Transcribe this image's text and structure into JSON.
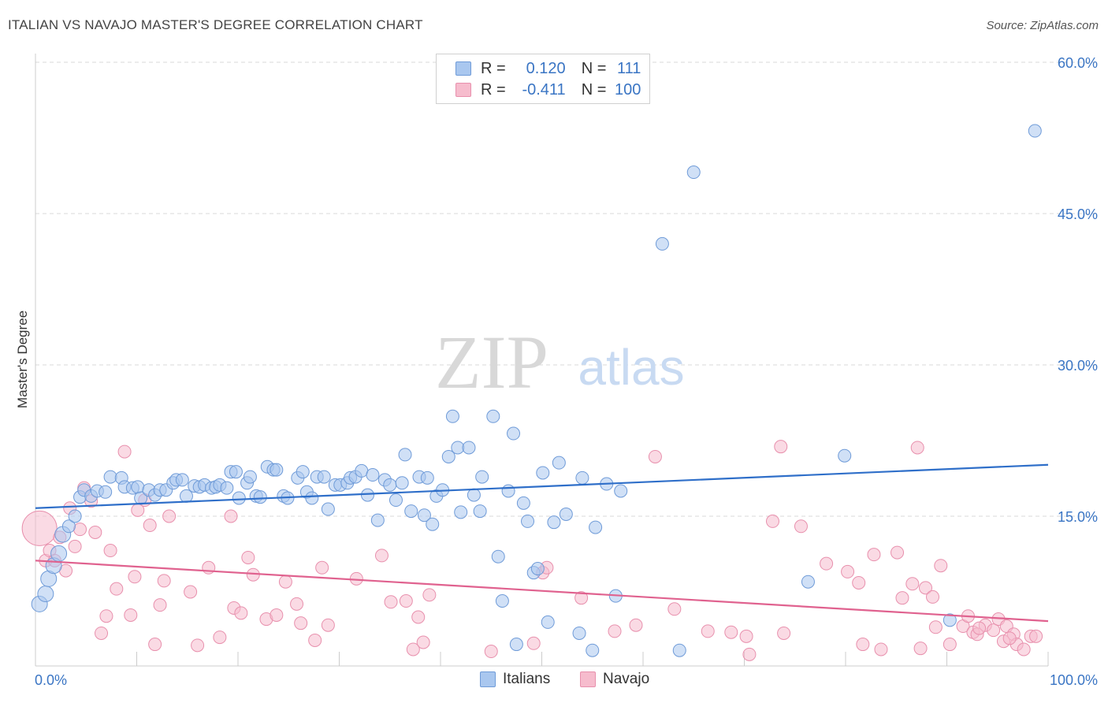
{
  "header": {
    "title": "ITALIAN VS NAVAJO MASTER'S DEGREE CORRELATION CHART",
    "source": "Source: ZipAtlas.com"
  },
  "watermark": {
    "zip": "ZIP",
    "atlas": "atlas"
  },
  "legend_top": {
    "rows": [
      {
        "r_label": "R = ",
        "r_value": "0.120",
        "n_label": "N = ",
        "n_value": "111"
      },
      {
        "r_label": "R = ",
        "r_value": "-0.411",
        "n_label": "N = ",
        "n_value": "100"
      }
    ]
  },
  "legend_bottom": {
    "italians": "Italians",
    "navajo": "Navajo"
  },
  "colors": {
    "italians_fill": "#a9c7ef",
    "italians_stroke": "#6f9bd8",
    "italians_line": "#2f6fc9",
    "navajo_fill": "#f6bccd",
    "navajo_stroke": "#e890ad",
    "navajo_line": "#e0628f",
    "tick_label": "#3a75c4",
    "grid": "#d9d9d9"
  },
  "chart_data": {
    "type": "scatter",
    "title": "ITALIAN VS NAVAJO MASTER'S DEGREE CORRELATION CHART",
    "xlabel": "",
    "ylabel": "Master's Degree",
    "xlim": [
      0,
      100
    ],
    "ylim": [
      0,
      62
    ],
    "x_tick_labels": [
      "0.0%",
      "100.0%"
    ],
    "y_ticks": [
      15,
      30,
      45,
      60
    ],
    "y_tick_labels": [
      "15.0%",
      "30.0%",
      "45.0%",
      "60.0%"
    ],
    "grid": "horizontal dashed",
    "series": [
      {
        "name": "Italians",
        "r": 0.12,
        "n": 111,
        "trend": {
          "x": [
            0,
            100
          ],
          "y": [
            15.8,
            20.1
          ]
        },
        "points": [
          [
            0.4,
            6.3
          ],
          [
            1.0,
            7.3
          ],
          [
            1.3,
            8.8
          ],
          [
            1.8,
            10.1
          ],
          [
            2.3,
            11.3
          ],
          [
            2.7,
            13.2
          ],
          [
            3.3,
            14.0
          ],
          [
            3.9,
            15.0
          ],
          [
            4.4,
            16.9
          ],
          [
            4.8,
            17.6
          ],
          [
            5.5,
            17.0
          ],
          [
            6.1,
            17.5
          ],
          [
            6.9,
            17.4
          ],
          [
            7.4,
            18.9
          ],
          [
            8.5,
            18.8
          ],
          [
            8.8,
            17.9
          ],
          [
            9.6,
            17.8
          ],
          [
            10.1,
            17.9
          ],
          [
            10.4,
            16.8
          ],
          [
            11.2,
            17.6
          ],
          [
            11.8,
            17.1
          ],
          [
            12.3,
            17.6
          ],
          [
            12.9,
            17.6
          ],
          [
            13.6,
            18.3
          ],
          [
            13.9,
            18.6
          ],
          [
            14.5,
            18.6
          ],
          [
            14.9,
            17.0
          ],
          [
            15.7,
            18.0
          ],
          [
            16.2,
            17.9
          ],
          [
            16.7,
            18.1
          ],
          [
            17.4,
            17.8
          ],
          [
            17.8,
            17.9
          ],
          [
            18.2,
            18.1
          ],
          [
            18.9,
            17.8
          ],
          [
            19.3,
            19.4
          ],
          [
            19.8,
            19.4
          ],
          [
            20.1,
            16.8
          ],
          [
            20.9,
            18.3
          ],
          [
            21.2,
            18.9
          ],
          [
            21.8,
            17.0
          ],
          [
            22.2,
            16.9
          ],
          [
            22.9,
            19.9
          ],
          [
            23.5,
            19.6
          ],
          [
            23.8,
            19.6
          ],
          [
            24.5,
            17.0
          ],
          [
            24.9,
            16.8
          ],
          [
            25.9,
            18.8
          ],
          [
            26.4,
            19.4
          ],
          [
            26.8,
            17.4
          ],
          [
            27.3,
            16.8
          ],
          [
            27.8,
            18.9
          ],
          [
            28.5,
            18.9
          ],
          [
            28.9,
            15.7
          ],
          [
            29.6,
            18.1
          ],
          [
            30.1,
            18.1
          ],
          [
            30.8,
            18.3
          ],
          [
            31.1,
            18.8
          ],
          [
            31.6,
            18.9
          ],
          [
            32.2,
            19.5
          ],
          [
            32.8,
            17.1
          ],
          [
            33.3,
            19.1
          ],
          [
            33.8,
            14.6
          ],
          [
            34.5,
            18.6
          ],
          [
            35.0,
            18.1
          ],
          [
            35.6,
            16.6
          ],
          [
            36.2,
            18.3
          ],
          [
            36.5,
            21.1
          ],
          [
            37.1,
            15.5
          ],
          [
            37.9,
            18.9
          ],
          [
            38.4,
            15.1
          ],
          [
            38.7,
            18.8
          ],
          [
            39.2,
            14.2
          ],
          [
            39.6,
            17.0
          ],
          [
            40.2,
            17.6
          ],
          [
            40.8,
            20.9
          ],
          [
            41.2,
            24.9
          ],
          [
            41.7,
            21.8
          ],
          [
            42.0,
            15.4
          ],
          [
            42.8,
            21.8
          ],
          [
            43.3,
            17.1
          ],
          [
            43.9,
            15.5
          ],
          [
            44.1,
            18.9
          ],
          [
            45.2,
            24.9
          ],
          [
            45.7,
            11.0
          ],
          [
            46.1,
            6.6
          ],
          [
            46.7,
            17.5
          ],
          [
            47.2,
            23.2
          ],
          [
            47.5,
            2.3
          ],
          [
            48.2,
            16.3
          ],
          [
            48.6,
            14.5
          ],
          [
            49.2,
            9.4
          ],
          [
            49.6,
            9.8
          ],
          [
            50.1,
            19.3
          ],
          [
            50.6,
            4.5
          ],
          [
            51.2,
            14.4
          ],
          [
            51.7,
            20.3
          ],
          [
            52.4,
            15.2
          ],
          [
            53.7,
            3.4
          ],
          [
            54.0,
            18.8
          ],
          [
            55.0,
            1.7
          ],
          [
            55.3,
            13.9
          ],
          [
            56.4,
            18.2
          ],
          [
            57.3,
            7.1
          ],
          [
            57.8,
            17.5
          ],
          [
            61.9,
            42.0
          ],
          [
            65.0,
            49.1
          ],
          [
            63.6,
            1.7
          ],
          [
            76.3,
            8.5
          ],
          [
            79.9,
            21.0
          ],
          [
            90.3,
            4.7
          ],
          [
            98.7,
            53.2
          ]
        ]
      },
      {
        "name": "Navajo",
        "r": -0.411,
        "n": 100,
        "trend": {
          "x": [
            0,
            100
          ],
          "y": [
            10.6,
            4.6
          ]
        },
        "points": [
          [
            0.4,
            13.8
          ],
          [
            1.0,
            10.6
          ],
          [
            1.4,
            11.6
          ],
          [
            1.9,
            10.6
          ],
          [
            2.4,
            12.9
          ],
          [
            3.0,
            9.6
          ],
          [
            3.4,
            15.8
          ],
          [
            3.9,
            12.0
          ],
          [
            4.4,
            13.7
          ],
          [
            4.8,
            17.8
          ],
          [
            5.5,
            16.5
          ],
          [
            5.9,
            13.4
          ],
          [
            6.5,
            3.4
          ],
          [
            7.0,
            5.1
          ],
          [
            7.4,
            11.6
          ],
          [
            8.0,
            7.8
          ],
          [
            8.8,
            21.4
          ],
          [
            9.4,
            5.2
          ],
          [
            9.8,
            9.0
          ],
          [
            10.1,
            15.6
          ],
          [
            10.8,
            16.6
          ],
          [
            11.3,
            14.1
          ],
          [
            11.8,
            2.3
          ],
          [
            12.3,
            6.2
          ],
          [
            12.7,
            8.6
          ],
          [
            13.2,
            15.0
          ],
          [
            15.3,
            7.5
          ],
          [
            16.0,
            2.2
          ],
          [
            17.1,
            9.9
          ],
          [
            18.2,
            3.0
          ],
          [
            19.3,
            15.0
          ],
          [
            19.6,
            5.9
          ],
          [
            20.3,
            5.4
          ],
          [
            21.0,
            10.9
          ],
          [
            21.5,
            9.2
          ],
          [
            22.8,
            4.8
          ],
          [
            23.8,
            5.2
          ],
          [
            24.7,
            8.5
          ],
          [
            25.8,
            6.3
          ],
          [
            26.2,
            4.4
          ],
          [
            27.6,
            2.7
          ],
          [
            28.3,
            9.9
          ],
          [
            28.9,
            4.2
          ],
          [
            31.7,
            8.8
          ],
          [
            34.2,
            11.1
          ],
          [
            35.1,
            6.5
          ],
          [
            36.6,
            6.6
          ],
          [
            37.3,
            1.8
          ],
          [
            37.8,
            5.0
          ],
          [
            38.3,
            2.5
          ],
          [
            38.9,
            7.2
          ],
          [
            45.0,
            1.6
          ],
          [
            49.2,
            2.4
          ],
          [
            50.1,
            9.4
          ],
          [
            50.5,
            9.9
          ],
          [
            53.9,
            6.9
          ],
          [
            57.2,
            3.6
          ],
          [
            59.3,
            4.2
          ],
          [
            61.2,
            20.9
          ],
          [
            63.1,
            5.8
          ],
          [
            66.4,
            3.6
          ],
          [
            68.7,
            3.5
          ],
          [
            70.2,
            3.1
          ],
          [
            70.5,
            1.3
          ],
          [
            72.8,
            14.5
          ],
          [
            73.6,
            21.9
          ],
          [
            73.9,
            3.4
          ],
          [
            75.6,
            14.0
          ],
          [
            78.1,
            10.3
          ],
          [
            80.2,
            9.5
          ],
          [
            81.3,
            8.4
          ],
          [
            81.7,
            2.3
          ],
          [
            82.8,
            11.2
          ],
          [
            83.5,
            1.8
          ],
          [
            85.1,
            11.4
          ],
          [
            85.6,
            6.9
          ],
          [
            86.6,
            8.3
          ],
          [
            87.1,
            21.8
          ],
          [
            87.4,
            1.9
          ],
          [
            87.9,
            7.9
          ],
          [
            88.6,
            7.0
          ],
          [
            89.4,
            10.1
          ],
          [
            90.3,
            2.3
          ],
          [
            91.6,
            4.1
          ],
          [
            92.1,
            5.1
          ],
          [
            92.6,
            3.5
          ],
          [
            93.0,
            3.3
          ],
          [
            93.8,
            4.2
          ],
          [
            94.6,
            3.7
          ],
          [
            95.1,
            4.8
          ],
          [
            95.6,
            2.6
          ],
          [
            95.9,
            4.1
          ],
          [
            96.6,
            3.3
          ],
          [
            96.9,
            2.3
          ],
          [
            97.6,
            1.8
          ],
          [
            98.3,
            3.1
          ],
          [
            98.8,
            3.1
          ],
          [
            93.2,
            3.9
          ],
          [
            88.9,
            4.0
          ],
          [
            96.2,
            2.9
          ]
        ]
      }
    ]
  }
}
